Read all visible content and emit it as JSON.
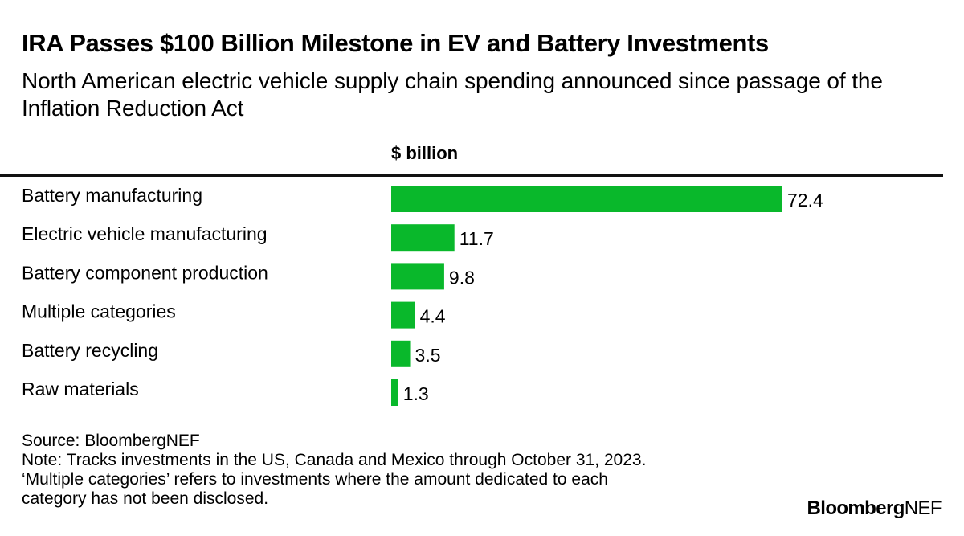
{
  "title": "IRA Passes $100 Billion Milestone in EV and Battery Investments",
  "subtitle": "North American electric vehicle supply chain spending announced since passage of the Inflation Reduction Act",
  "unit_label": "$ billion",
  "colors": {
    "bar": "#09B82B",
    "text": "#000000",
    "rule": "#111111"
  },
  "chart_data": {
    "type": "bar",
    "orientation": "horizontal",
    "title": "IRA Passes $100 Billion Milestone in EV and Battery Investments",
    "xlabel": "$ billion",
    "ylabel": "",
    "categories": [
      "Battery manufacturing",
      "Electric vehicle manufacturing",
      "Battery component production",
      "Multiple categories",
      "Battery recycling",
      "Raw materials"
    ],
    "values": [
      72.4,
      11.7,
      9.8,
      4.4,
      3.5,
      1.3
    ],
    "value_labels": [
      "72.4",
      "11.7",
      "9.8",
      "4.4",
      "3.5",
      "1.3"
    ],
    "xlim": [
      0,
      72.4
    ],
    "grid": false
  },
  "footer": {
    "source": "Source: BloombergNEF",
    "note_line1": "Note: Tracks investments in the US, Canada and Mexico through October 31, 2023.",
    "note_line2": "‘Multiple categories’ refers to investments where the amount dedicated to each",
    "note_line3": "category has not been disclosed."
  },
  "brand": {
    "bold": "Bloomberg",
    "light": "NEF"
  }
}
